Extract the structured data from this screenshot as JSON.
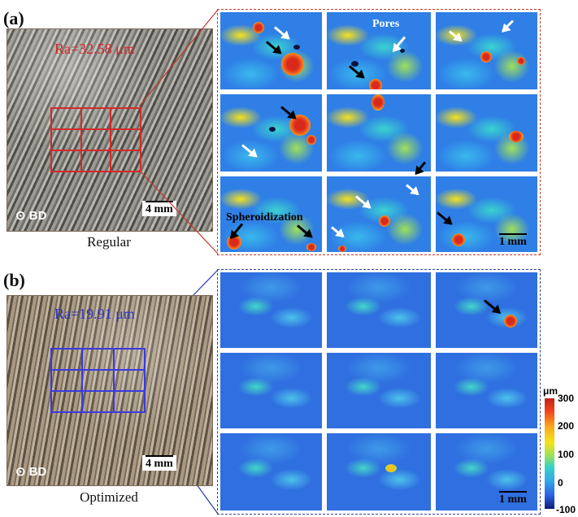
{
  "panels": [
    {
      "label": "(a)",
      "caption": "Regular",
      "ra": "Ra=32.58 μm",
      "build_direction": "⊙ BD",
      "photo_scale": "4 mm",
      "zoom_scale": "1 mm",
      "annotations": {
        "pores": "Pores",
        "spheroidization": "Spheroidization"
      },
      "accent": "#d32a2a"
    },
    {
      "label": "(b)",
      "caption": "Optimized",
      "ra": "Ra=19.91 μm",
      "build_direction": "⊙ BD",
      "photo_scale": "4 mm",
      "zoom_scale": "1 mm",
      "accent": "#3a3ae0"
    }
  ],
  "colorbar": {
    "unit": "μm",
    "ticks": [
      "300",
      "200",
      "100",
      "0",
      "-100"
    ],
    "range": [
      -100,
      300
    ],
    "colormap": "jet"
  }
}
